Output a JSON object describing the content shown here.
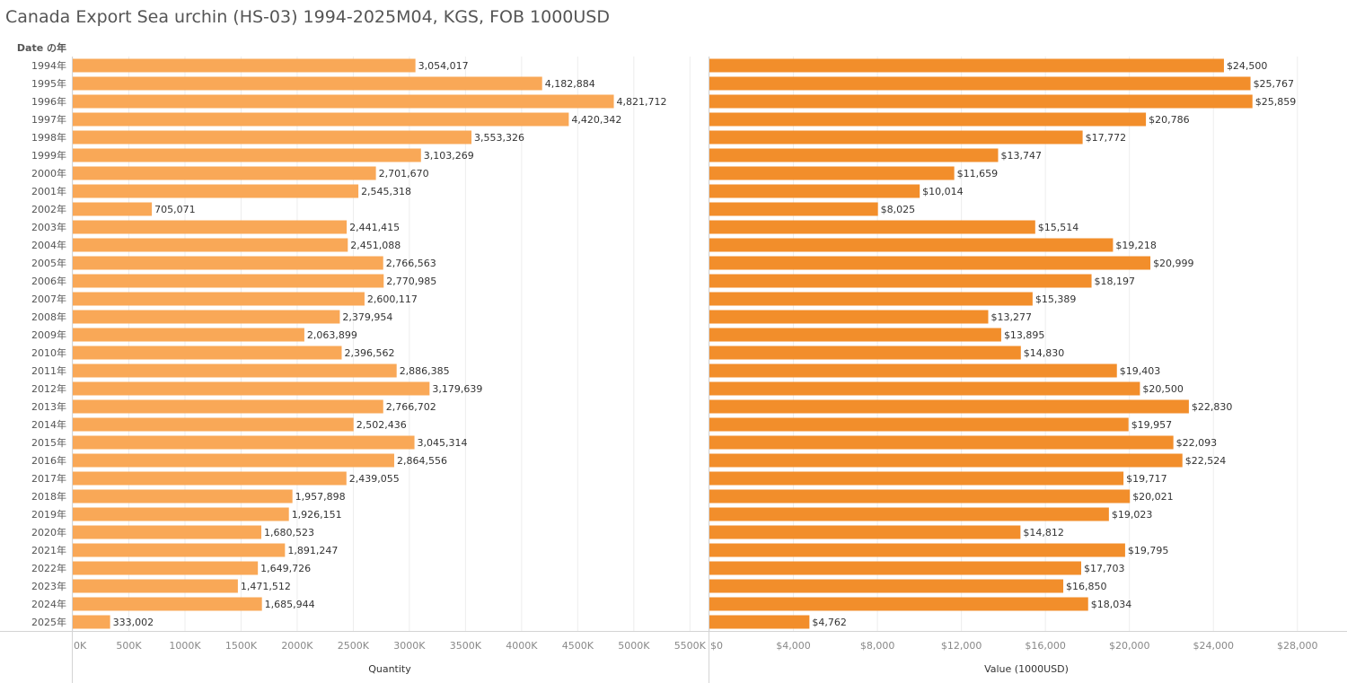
{
  "title": "Canada Export Sea urchin (HS-03) 1994-2025M04, KGS, FOB 1000USD",
  "colors": {
    "quantity": "#F9A857",
    "value": "#F28E2B",
    "grid": "#EDEDED",
    "axis": "#D4D4D4"
  },
  "chart_data": [
    {
      "type": "bar",
      "orientation": "horizontal",
      "row_header": "Date の年",
      "xlabel": "Quantity",
      "xlim": [
        0,
        5500000
      ],
      "x_ticks": [
        0,
        500000,
        1000000,
        1500000,
        2000000,
        2500000,
        3000000,
        3500000,
        4000000,
        4500000,
        5000000,
        5500000
      ],
      "x_tick_labels": [
        "0K",
        "500K",
        "1000K",
        "1500K",
        "2000K",
        "2500K",
        "3000K",
        "3500K",
        "4000K",
        "4500K",
        "5000K",
        "5500K"
      ],
      "categories": [
        "1994年",
        "1995年",
        "1996年",
        "1997年",
        "1998年",
        "1999年",
        "2000年",
        "2001年",
        "2002年",
        "2003年",
        "2004年",
        "2005年",
        "2006年",
        "2007年",
        "2008年",
        "2009年",
        "2010年",
        "2011年",
        "2012年",
        "2013年",
        "2014年",
        "2015年",
        "2016年",
        "2017年",
        "2018年",
        "2019年",
        "2020年",
        "2021年",
        "2022年",
        "2023年",
        "2024年",
        "2025年"
      ],
      "values": [
        3054017,
        4182884,
        4821712,
        4420342,
        3553326,
        3103269,
        2701670,
        2545318,
        705071,
        2441415,
        2451088,
        2766563,
        2770985,
        2600117,
        2379954,
        2063899,
        2396562,
        2886385,
        3179639,
        2766702,
        2502436,
        3045314,
        2864556,
        2439055,
        1957898,
        1926151,
        1680523,
        1891247,
        1649726,
        1471512,
        1685944,
        333002
      ],
      "value_labels": [
        "3,054,017",
        "4,182,884",
        "4,821,712",
        "4,420,342",
        "3,553,326",
        "3,103,269",
        "2,701,670",
        "2,545,318",
        "705,071",
        "2,441,415",
        "2,451,088",
        "2,766,563",
        "2,770,985",
        "2,600,117",
        "2,379,954",
        "2,063,899",
        "2,396,562",
        "2,886,385",
        "3,179,639",
        "2,766,702",
        "2,502,436",
        "3,045,314",
        "2,864,556",
        "2,439,055",
        "1,957,898",
        "1,926,151",
        "1,680,523",
        "1,891,247",
        "1,649,726",
        "1,471,512",
        "1,685,944",
        "333,002"
      ],
      "grid": true
    },
    {
      "type": "bar",
      "orientation": "horizontal",
      "xlabel": "Value (1000USD)",
      "xlim": [
        0,
        28800
      ],
      "x_ticks": [
        0,
        4000,
        8000,
        12000,
        16000,
        20000,
        24000,
        28000
      ],
      "x_tick_labels": [
        "$0",
        "$4,000",
        "$8,000",
        "$12,000",
        "$16,000",
        "$20,000",
        "$24,000",
        "$28,000"
      ],
      "values": [
        24500,
        25767,
        25859,
        20786,
        17772,
        13747,
        11659,
        10014,
        8025,
        15514,
        19218,
        20999,
        18197,
        15389,
        13277,
        13895,
        14830,
        19403,
        20500,
        22830,
        19957,
        22093,
        22524,
        19717,
        20021,
        19023,
        14812,
        19795,
        17703,
        16850,
        18034,
        4762
      ],
      "value_labels": [
        "$24,500",
        "$25,767",
        "$25,859",
        "$20,786",
        "$17,772",
        "$13,747",
        "$11,659",
        "$10,014",
        "$8,025",
        "$15,514",
        "$19,218",
        "$20,999",
        "$18,197",
        "$15,389",
        "$13,277",
        "$13,895",
        "$14,830",
        "$19,403",
        "$20,500",
        "$22,830",
        "$19,957",
        "$22,093",
        "$22,524",
        "$19,717",
        "$20,021",
        "$19,023",
        "$14,812",
        "$19,795",
        "$17,703",
        "$16,850",
        "$18,034",
        "$4,762"
      ],
      "grid": true
    }
  ]
}
